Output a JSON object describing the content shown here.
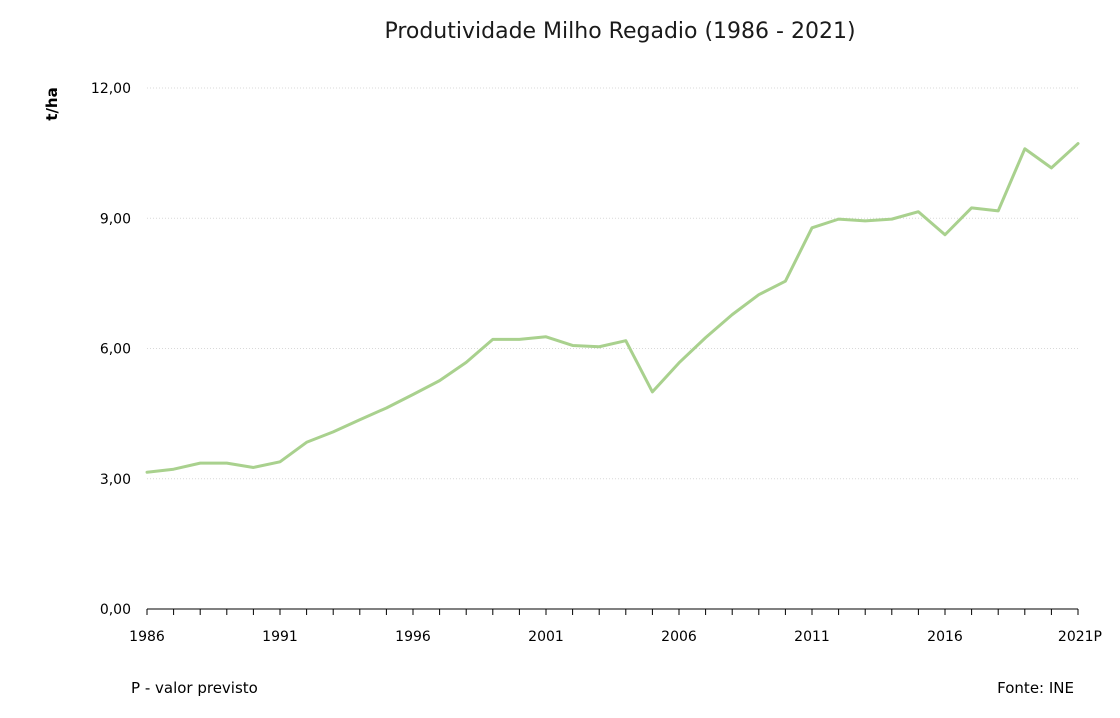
{
  "chart_data": {
    "type": "line",
    "title": "Produtividade Milho Regadio (1986 - 2021)",
    "xlabel": "",
    "ylabel": "t/ha",
    "ylim": [
      0,
      12
    ],
    "yticks": [
      0,
      3,
      6,
      9,
      12
    ],
    "ytick_labels": [
      "0,00",
      "3,00",
      "6,00",
      "9,00",
      "12,00"
    ],
    "x": [
      1986,
      1987,
      1988,
      1989,
      1990,
      1991,
      1992,
      1993,
      1994,
      1995,
      1996,
      1997,
      1998,
      1999,
      2000,
      2001,
      2002,
      2003,
      2004,
      2005,
      2006,
      2007,
      2008,
      2009,
      2010,
      2011,
      2012,
      2013,
      2014,
      2015,
      2016,
      2017,
      2018,
      2019,
      2020,
      2021
    ],
    "xtick_values": [
      1986,
      1991,
      1996,
      2001,
      2006,
      2011,
      2016,
      2021
    ],
    "xtick_labels": [
      "1986",
      "1991",
      "1996",
      "2001",
      "2006",
      "2011",
      "2016",
      "2021P"
    ],
    "series": [
      {
        "color": "#a9d18e",
        "values": [
          3.15,
          3.22,
          3.36,
          3.36,
          3.26,
          3.39,
          3.84,
          4.08,
          4.36,
          4.63,
          4.94,
          5.26,
          5.68,
          6.21,
          6.21,
          6.27,
          6.07,
          6.04,
          6.18,
          5.0,
          5.67,
          6.25,
          6.78,
          7.24,
          7.55,
          8.78,
          8.98,
          8.94,
          8.98,
          9.15,
          8.62,
          9.24,
          9.17,
          10.6,
          10.16,
          10.72
        ]
      }
    ],
    "grid": true,
    "legend": "none"
  },
  "footnote_left": "P - valor previsto",
  "footnote_right": "Fonte: INE",
  "colors": {
    "line": "#a9d18e",
    "grid": "#d9d9d9",
    "axis": "#000000"
  }
}
